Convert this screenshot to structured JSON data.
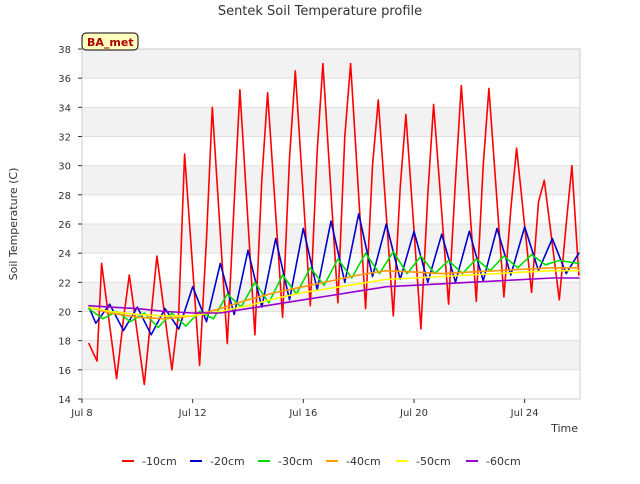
{
  "chart_data": {
    "type": "line",
    "title": "Sentek Soil Temperature profile",
    "xlabel": "Time",
    "ylabel": "Soil Temperature (C)",
    "station_label": "BA_met",
    "xlim": [
      "2019-07-08",
      "2019-07-26"
    ],
    "ylim": [
      14,
      38
    ],
    "x_ticks": [
      {
        "date": "2019-07-08",
        "label": "Jul 8"
      },
      {
        "date": "2019-07-12",
        "label": "Jul 12"
      },
      {
        "date": "2019-07-16",
        "label": "Jul 16"
      },
      {
        "date": "2019-07-20",
        "label": "Jul 20"
      },
      {
        "date": "2019-07-24",
        "label": "Jul 24"
      }
    ],
    "y_ticks": [
      14,
      16,
      18,
      20,
      22,
      24,
      26,
      28,
      30,
      32,
      34,
      36,
      38
    ],
    "grid": true,
    "legend_position": "bottom",
    "series": [
      {
        "name": "-10cm",
        "color": "#ff0000",
        "x": [
          "2019-07-08 06:00",
          "2019-07-08 13:00",
          "2019-07-08 17:00",
          "2019-07-09 06:00",
          "2019-07-09 12:00",
          "2019-07-09 17:00",
          "2019-07-10 06:00",
          "2019-07-10 12:00",
          "2019-07-10 17:00",
          "2019-07-11 06:00",
          "2019-07-11 12:00",
          "2019-07-11 17:00",
          "2019-07-12 06:00",
          "2019-07-12 12:00",
          "2019-07-12 17:00",
          "2019-07-13 06:00",
          "2019-07-13 12:00",
          "2019-07-13 17:00",
          "2019-07-14 06:00",
          "2019-07-14 12:00",
          "2019-07-14 17:00",
          "2019-07-15 06:00",
          "2019-07-15 12:00",
          "2019-07-15 17:00",
          "2019-07-16 06:00",
          "2019-07-16 12:00",
          "2019-07-16 17:00",
          "2019-07-17 06:00",
          "2019-07-17 12:00",
          "2019-07-17 17:00",
          "2019-07-18 06:00",
          "2019-07-18 12:00",
          "2019-07-18 17:00",
          "2019-07-19 06:00",
          "2019-07-19 12:00",
          "2019-07-19 17:00",
          "2019-07-20 06:00",
          "2019-07-20 12:00",
          "2019-07-20 17:00",
          "2019-07-21 06:00",
          "2019-07-21 12:00",
          "2019-07-21 17:00",
          "2019-07-22 06:00",
          "2019-07-22 12:00",
          "2019-07-22 17:00",
          "2019-07-23 06:00",
          "2019-07-23 12:00",
          "2019-07-23 17:00",
          "2019-07-24 06:00",
          "2019-07-24 12:00",
          "2019-07-24 17:00",
          "2019-07-25 06:00",
          "2019-07-25 12:00",
          "2019-07-25 17:00",
          "2019-07-25 23:00"
        ],
        "y": [
          17.8,
          16.6,
          23.3,
          15.4,
          19.5,
          22.5,
          15.0,
          19.8,
          23.8,
          16.0,
          20.0,
          30.8,
          16.3,
          25.0,
          34.0,
          17.8,
          27.5,
          35.2,
          18.4,
          29.0,
          35.0,
          19.6,
          30.5,
          36.5,
          20.4,
          31.0,
          37.0,
          20.6,
          32.0,
          37.0,
          20.2,
          30.0,
          34.5,
          19.7,
          28.5,
          33.5,
          18.8,
          28.0,
          34.2,
          20.5,
          29.0,
          35.5,
          20.7,
          30.0,
          35.3,
          21.0,
          27.0,
          31.2,
          21.3,
          27.5,
          29.0,
          20.8,
          26.0,
          30.0,
          22.5
        ]
      },
      {
        "name": "-20cm",
        "color": "#0000cc",
        "x": [
          "2019-07-08 06:00",
          "2019-07-08 12:00",
          "2019-07-09 00:00",
          "2019-07-09 12:00",
          "2019-07-10 00:00",
          "2019-07-10 12:00",
          "2019-07-11 00:00",
          "2019-07-11 12:00",
          "2019-07-12 00:00",
          "2019-07-12 12:00",
          "2019-07-13 00:00",
          "2019-07-13 12:00",
          "2019-07-14 00:00",
          "2019-07-14 12:00",
          "2019-07-15 00:00",
          "2019-07-15 12:00",
          "2019-07-16 00:00",
          "2019-07-16 12:00",
          "2019-07-17 00:00",
          "2019-07-17 12:00",
          "2019-07-18 00:00",
          "2019-07-18 12:00",
          "2019-07-19 00:00",
          "2019-07-19 12:00",
          "2019-07-20 00:00",
          "2019-07-20 12:00",
          "2019-07-21 00:00",
          "2019-07-21 12:00",
          "2019-07-22 00:00",
          "2019-07-22 12:00",
          "2019-07-23 00:00",
          "2019-07-23 12:00",
          "2019-07-24 00:00",
          "2019-07-24 12:00",
          "2019-07-25 00:00",
          "2019-07-25 12:00",
          "2019-07-25 23:00"
        ],
        "y": [
          20.3,
          19.2,
          20.5,
          18.7,
          20.3,
          18.4,
          20.2,
          18.8,
          21.7,
          19.3,
          23.3,
          19.8,
          24.2,
          20.3,
          25.0,
          20.8,
          25.7,
          21.5,
          26.2,
          22.0,
          26.7,
          22.4,
          26.0,
          22.2,
          25.5,
          22.0,
          25.3,
          22.0,
          25.5,
          22.1,
          25.7,
          22.5,
          25.8,
          22.8,
          25.0,
          22.6,
          24.0
        ]
      },
      {
        "name": "-30cm",
        "color": "#00dd00",
        "x": [
          "2019-07-08 06:00",
          "2019-07-08 18:00",
          "2019-07-09 06:00",
          "2019-07-09 18:00",
          "2019-07-10 06:00",
          "2019-07-10 18:00",
          "2019-07-11 06:00",
          "2019-07-11 18:00",
          "2019-07-12 06:00",
          "2019-07-12 18:00",
          "2019-07-13 06:00",
          "2019-07-13 18:00",
          "2019-07-14 06:00",
          "2019-07-14 18:00",
          "2019-07-15 06:00",
          "2019-07-15 18:00",
          "2019-07-16 06:00",
          "2019-07-16 18:00",
          "2019-07-17 06:00",
          "2019-07-17 18:00",
          "2019-07-18 06:00",
          "2019-07-18 18:00",
          "2019-07-19 06:00",
          "2019-07-19 18:00",
          "2019-07-20 06:00",
          "2019-07-20 18:00",
          "2019-07-21 06:00",
          "2019-07-21 18:00",
          "2019-07-22 06:00",
          "2019-07-22 18:00",
          "2019-07-23 06:00",
          "2019-07-23 18:00",
          "2019-07-24 06:00",
          "2019-07-24 18:00",
          "2019-07-25 06:00",
          "2019-07-25 23:00"
        ],
        "y": [
          20.2,
          19.5,
          20.0,
          19.3,
          19.9,
          18.9,
          19.9,
          19.0,
          20.0,
          19.5,
          21.2,
          20.3,
          22.0,
          20.6,
          22.5,
          21.2,
          23.0,
          21.8,
          23.6,
          22.3,
          24.0,
          22.6,
          24.1,
          22.6,
          23.8,
          22.6,
          23.5,
          22.6,
          23.6,
          22.8,
          23.8,
          23.0,
          23.9,
          23.2,
          23.5,
          23.3
        ]
      },
      {
        "name": "-40cm",
        "color": "#ff9900",
        "x": [
          "2019-07-08 06:00",
          "2019-07-09 00:00",
          "2019-07-10 00:00",
          "2019-07-11 00:00",
          "2019-07-12 00:00",
          "2019-07-13 00:00",
          "2019-07-14 00:00",
          "2019-07-15 00:00",
          "2019-07-16 00:00",
          "2019-07-17 00:00",
          "2019-07-18 00:00",
          "2019-07-19 00:00",
          "2019-07-20 00:00",
          "2019-07-21 00:00",
          "2019-07-22 00:00",
          "2019-07-23 00:00",
          "2019-07-24 00:00",
          "2019-07-25 00:00",
          "2019-07-25 23:00"
        ],
        "y": [
          20.3,
          19.9,
          19.6,
          19.5,
          19.7,
          20.2,
          20.8,
          21.3,
          21.7,
          22.1,
          22.5,
          22.8,
          22.7,
          22.6,
          22.7,
          22.8,
          22.9,
          23.0,
          23.0
        ]
      },
      {
        "name": "-50cm",
        "color": "#ffff00",
        "x": [
          "2019-07-08 06:00",
          "2019-07-09 00:00",
          "2019-07-10 00:00",
          "2019-07-11 00:00",
          "2019-07-12 00:00",
          "2019-07-13 00:00",
          "2019-07-14 00:00",
          "2019-07-15 00:00",
          "2019-07-16 00:00",
          "2019-07-17 00:00",
          "2019-07-18 00:00",
          "2019-07-19 00:00",
          "2019-07-20 00:00",
          "2019-07-21 00:00",
          "2019-07-22 00:00",
          "2019-07-23 00:00",
          "2019-07-24 00:00",
          "2019-07-25 00:00",
          "2019-07-25 23:00"
        ],
        "y": [
          20.3,
          20.0,
          19.8,
          19.7,
          19.7,
          20.0,
          20.4,
          20.9,
          21.3,
          21.6,
          21.9,
          22.2,
          22.3,
          22.4,
          22.5,
          22.6,
          22.7,
          22.8,
          22.8
        ]
      },
      {
        "name": "-60cm",
        "color": "#9900cc",
        "x": [
          "2019-07-08 06:00",
          "2019-07-09 00:00",
          "2019-07-10 00:00",
          "2019-07-11 00:00",
          "2019-07-12 00:00",
          "2019-07-13 00:00",
          "2019-07-14 00:00",
          "2019-07-15 00:00",
          "2019-07-16 00:00",
          "2019-07-17 00:00",
          "2019-07-18 00:00",
          "2019-07-19 00:00",
          "2019-07-20 00:00",
          "2019-07-21 00:00",
          "2019-07-22 00:00",
          "2019-07-23 00:00",
          "2019-07-24 00:00",
          "2019-07-25 00:00",
          "2019-07-25 23:00"
        ],
        "y": [
          20.4,
          20.3,
          20.2,
          20.0,
          19.9,
          19.9,
          20.2,
          20.5,
          20.8,
          21.1,
          21.4,
          21.7,
          21.8,
          21.9,
          22.0,
          22.1,
          22.2,
          22.3,
          22.3
        ]
      }
    ]
  }
}
